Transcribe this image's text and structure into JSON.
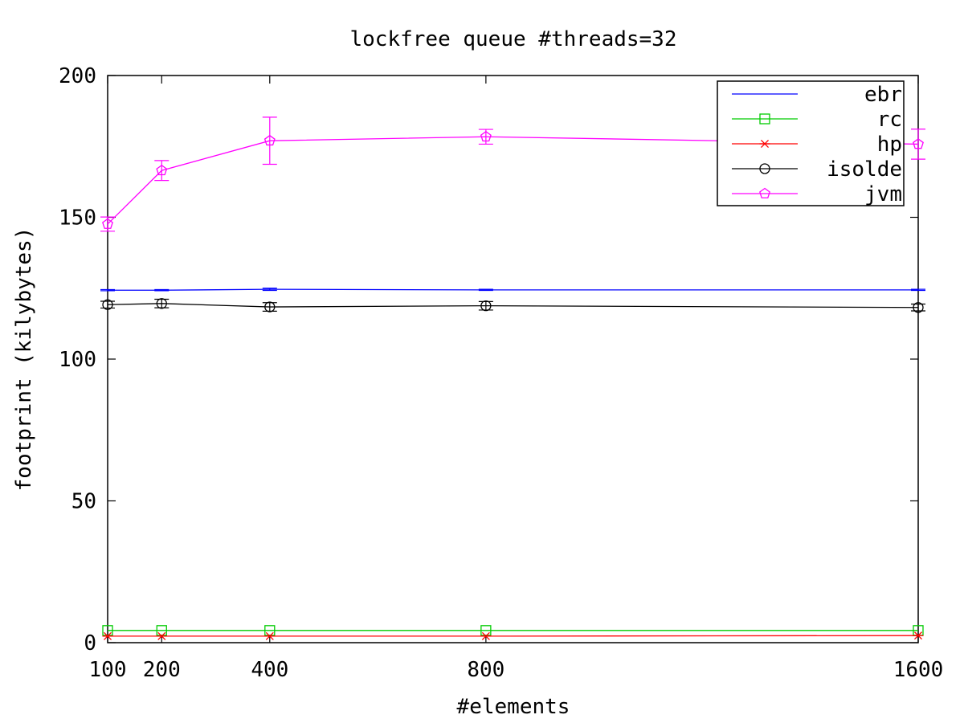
{
  "chart_data": {
    "type": "line",
    "title": "lockfree queue #threads=32",
    "xlabel": "#elements",
    "ylabel": "footprint (kilybytes)",
    "xlim": [
      100,
      1600
    ],
    "ylim": [
      0,
      200
    ],
    "x_ticks": [
      100,
      200,
      400,
      800,
      1600
    ],
    "y_ticks": [
      0,
      50,
      100,
      150,
      200
    ],
    "x_tick_labels": [
      "100",
      "200",
      "400",
      "800",
      "1600"
    ],
    "y_tick_labels": [
      "0",
      "50",
      "100",
      "150",
      "200"
    ],
    "grid": false,
    "legend_position": "top-right",
    "x": [
      100,
      200,
      400,
      800,
      1600
    ],
    "series": [
      {
        "name": "ebr",
        "color": "#0000ff",
        "marker": "none",
        "values": [
          124.3,
          124.3,
          124.6,
          124.4,
          124.4
        ],
        "errors": [
          0.2,
          0.2,
          0.4,
          0.2,
          0.2
        ]
      },
      {
        "name": "rc",
        "color": "#00cc00",
        "marker": "square",
        "values": [
          4.3,
          4.3,
          4.3,
          4.3,
          4.3
        ],
        "errors": [
          0,
          0,
          0,
          0,
          0
        ]
      },
      {
        "name": "hp",
        "color": "#ff0000",
        "marker": "star",
        "values": [
          2.3,
          2.3,
          2.3,
          2.3,
          2.5
        ],
        "errors": [
          0,
          0,
          0,
          0,
          0
        ]
      },
      {
        "name": "isolde",
        "color": "#000000",
        "marker": "circle",
        "values": [
          119.2,
          119.6,
          118.4,
          118.8,
          118.2
        ],
        "errors": [
          1.2,
          1.5,
          1.5,
          1.5,
          1.2
        ]
      },
      {
        "name": "jvm",
        "color": "#ff00ff",
        "marker": "pentagon",
        "values": [
          147.6,
          166.5,
          177.0,
          178.4,
          175.8
        ],
        "errors": [
          2.5,
          3.5,
          8.3,
          2.6,
          5.3
        ]
      }
    ]
  }
}
